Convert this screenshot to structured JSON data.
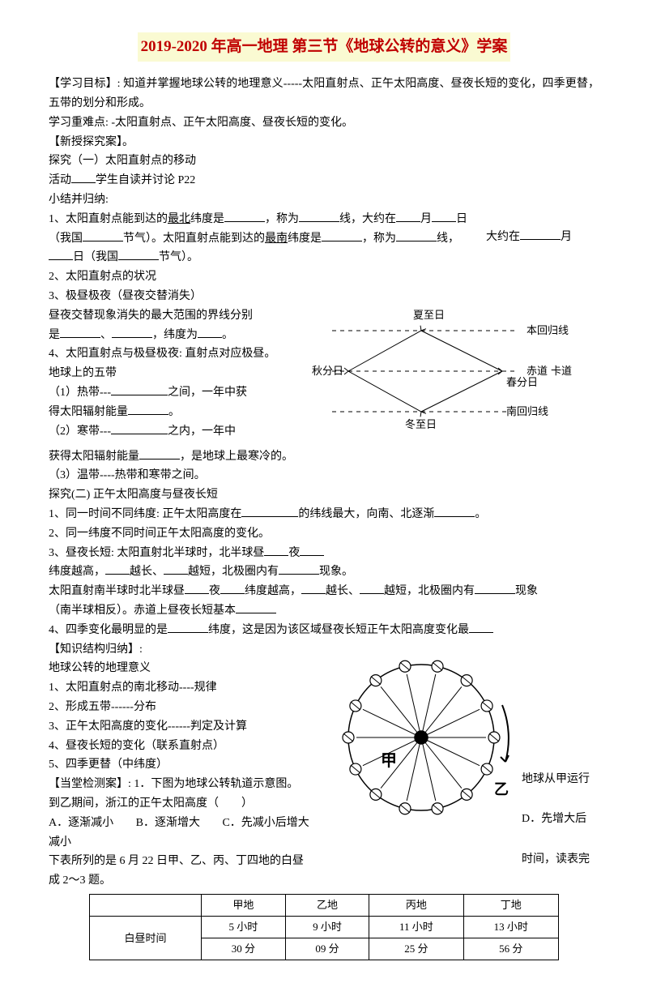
{
  "title": "2019-2020 年高一地理 第三节《地球公转的意义》学案",
  "p1": "【学习目标】: 知道并掌握地球公转的地理意义-----太阳直射点、正午太阳高度、昼夜长短的变化，四季更替，五带的划分和形成。",
  "p2": "学习重难点: -太阳直射点、正午太阳高度、昼夜长短的变化。",
  "p3": "【新授探究案】。",
  "p4": "探究（一）太阳直射点的移动",
  "p5a": "活动",
  "p5b": "学生自读并讨论 P22",
  "p6": "小结并归纳:",
  "p7a": "1、太阳直射点能到达的",
  "p7b": "最北",
  "p7c": "纬度是",
  "p7d": "，称为",
  "p7e": "线，大约在",
  "p7f": "月",
  "p7g": "日",
  "p8a": "（我国",
  "p8b": "节气）。太阳直射点能到达的",
  "p8c": "最南",
  "p8d": "纬度是",
  "p8e": "，称为",
  "p8f": "线，",
  "p8right": "大约在",
  "p8g": "月",
  "p9a": "日（我国",
  "p9b": "节气）。",
  "p10": "2、太阳直射点的状况",
  "p11": "3、极昼极夜（昼夜交替消失）",
  "p12a": "昼夜交替现象消失的最大范围的界线分别",
  "p12b": "是",
  "p12c": "，纬度为",
  "p12d": "。",
  "p13": "4、太阳直射点与极昼极夜: 直射点对应极昼。",
  "p14": "地球上的五带",
  "p15a": "（1）热带---",
  "p15b": "之间，一年中获",
  "p16a": "得太阳辐射能量",
  "p16b": "。",
  "p17a": "（2）寒带---",
  "p17b": "之内，一年中",
  "p18a": "获得太阳辐射能量",
  "p18b": "，是地球上最寒冷的。",
  "p19": "（3）温带----热带和寒带之间。",
  "p20": "探究(二) 正午太阳高度与昼夜长短",
  "p21a": "1、同一时间不同纬度: 正午太阳高度在",
  "p21b": "的纬线最大，向南、北逐渐",
  "p21c": "。",
  "p22": "2、同一纬度不同时间正午太阳高度的变化。",
  "p23a": "3、昼夜长短: 太阳直射北半球时，北半球昼",
  "p23b": "夜",
  "p24a": "纬度越高，",
  "p24b": "越长、",
  "p24c": "越短，北极圈内有",
  "p24d": "现象。",
  "p25a": "太阳直射南半球时北半球昼",
  "p25b": "夜",
  "p25c": "纬度越高，",
  "p25d": "越长、",
  "p25e": "越短，北极圈内有",
  "p25f": "现象",
  "p26a": "（南半球相反）。赤道上昼夜长短基本",
  "p27a": "4、四季变化最明显的是",
  "p27b": "纬度，这是因为该区域昼夜长短正午太阳高度变化最",
  "p28": "【知识结构归纳】:",
  "p29": "地球公转的地理意义",
  "p30": "1、太阳直射点的南北移动----规律",
  "p31": "2、形成五带------分布",
  "p32": "3、正午太阳高度的变化------判定及计算",
  "p33": "4、昼夜长短的变化（联系直射点）",
  "p34": "5、四季更替（中纬度）",
  "p35": "【当堂检测案】: 1．下图为地球公转轨道示意图。",
  "p35r": "地球从甲运行",
  "p36": "到乙期间，浙江的正午太阳高度（　　）",
  "p37a": "A．逐渐减小",
  "p37b": "B．逐渐增大",
  "p37c": "C．先减小后增大",
  "p37d": "D．先增大后",
  "p38": "减小",
  "p39": "下表所列的是 6 月 22 日甲、乙、丙、丁四地的白昼",
  "p39r": "时间，读表完",
  "p40": "成 2～3 题。",
  "table": {
    "headers": [
      "",
      "甲地",
      "乙地",
      "丙地",
      "丁地"
    ],
    "rowlabel": "白昼时间",
    "cells": [
      [
        "5 小时",
        "9 小时",
        "11 小时",
        "13 小时"
      ],
      [
        "30 分",
        "09 分",
        "25 分",
        "56 分"
      ]
    ]
  },
  "diagram1": {
    "labels": [
      "夏至日",
      "本回归线",
      "赤道",
      "春分日",
      "南回归线",
      "秋分日",
      "冬至日"
    ],
    "extra": "卡道",
    "stroke": "#000"
  },
  "diagram2": {
    "labels": [
      "甲",
      "乙"
    ],
    "stroke": "#000"
  }
}
